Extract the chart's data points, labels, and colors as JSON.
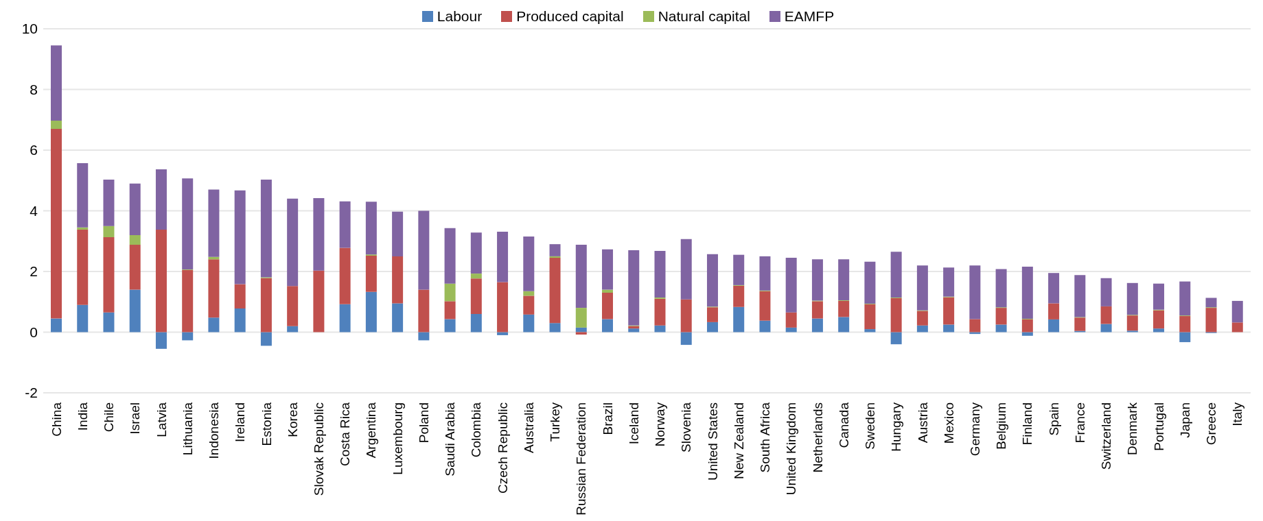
{
  "chart_data": {
    "type": "bar",
    "stacked": true,
    "legend": "top",
    "grid": "y",
    "categories": [
      "China",
      "India",
      "Chile",
      "Israel",
      "Latvia",
      "Lithuania",
      "Indonesia",
      "Ireland",
      "Estonia",
      "Korea",
      "Slovak Republic",
      "Costa Rica",
      "Argentina",
      "Luxembourg",
      "Poland",
      "Saudi Arabia",
      "Colombia",
      "Czech Republic",
      "Australia",
      "Turkey",
      "Russian Federation",
      "Brazil",
      "Iceland",
      "Norway",
      "Slovenia",
      "United States",
      "New Zealand",
      "South Africa",
      "United Kingdom",
      "Netherlands",
      "Canada",
      "Sweden",
      "Hungary",
      "Austria",
      "Mexico",
      "Germany",
      "Belgium",
      "Finland",
      "Spain",
      "France",
      "Switzerland",
      "Denmark",
      "Portugal",
      "Japan",
      "Greece",
      "Italy"
    ],
    "ylim": [
      -2,
      10
    ],
    "yticks": [
      -2,
      0,
      2,
      4,
      6,
      8,
      10
    ],
    "series": [
      {
        "name": "Labour",
        "color": "#4f81bd",
        "values": [
          0.45,
          0.9,
          0.65,
          1.4,
          -0.55,
          -0.27,
          0.48,
          0.78,
          -0.45,
          0.2,
          0,
          0.92,
          1.33,
          0.95,
          -0.27,
          0.43,
          0.6,
          -0.1,
          0.58,
          0.3,
          0.15,
          0.43,
          0.12,
          0.22,
          -0.42,
          0.33,
          0.83,
          0.38,
          0.15,
          0.45,
          0.5,
          0.1,
          -0.4,
          0.22,
          0.25,
          -0.06,
          0.25,
          -0.12,
          0.42,
          0.04,
          0.27,
          0.05,
          0.12,
          -0.33,
          -0.03,
          0
        ]
      },
      {
        "name": "Produced capital",
        "color": "#c0504d",
        "values": [
          6.25,
          2.48,
          2.48,
          1.48,
          3.38,
          2.05,
          1.92,
          0.8,
          1.78,
          1.32,
          2.03,
          1.86,
          1.19,
          1.55,
          1.4,
          0.59,
          1.17,
          1.65,
          0.62,
          2.15,
          -0.08,
          0.87,
          0.08,
          0.88,
          1.08,
          0.49,
          0.7,
          0.97,
          0.5,
          0.57,
          0.53,
          0.82,
          1.12,
          0.48,
          0.9,
          0.43,
          0.55,
          0.42,
          0.53,
          0.44,
          0.58,
          0.5,
          0.6,
          0.53,
          0.8,
          0.32
        ]
      },
      {
        "name": "Natural capital",
        "color": "#9bbb59",
        "values": [
          0.27,
          0.07,
          0.37,
          0.32,
          0,
          0.02,
          0.08,
          0,
          0.03,
          0,
          0,
          null,
          0.04,
          0,
          0,
          0.58,
          0.16,
          null,
          0.15,
          0.05,
          0.65,
          0.1,
          0.02,
          0.04,
          0,
          0.02,
          0.02,
          0.02,
          0,
          0.02,
          0.02,
          0.02,
          0.02,
          0.02,
          0.02,
          0,
          0.02,
          0.02,
          null,
          0.02,
          0,
          0.02,
          0.02,
          0.02,
          0.02,
          0
        ]
      },
      {
        "name": "EAMFP",
        "color": "#8064a2",
        "values": [
          2.48,
          2.12,
          1.53,
          1.7,
          1.99,
          3.0,
          2.22,
          3.09,
          3.22,
          2.88,
          2.39,
          1.53,
          1.74,
          1.47,
          2.6,
          1.83,
          1.35,
          1.66,
          1.8,
          0.4,
          2.08,
          1.33,
          2.48,
          1.54,
          1.99,
          1.73,
          1.0,
          1.13,
          1.8,
          1.36,
          1.35,
          1.38,
          1.51,
          1.48,
          0.96,
          1.77,
          1.26,
          1.72,
          1.0,
          1.38,
          0.93,
          1.05,
          0.86,
          1.12,
          0.31,
          0.71
        ]
      }
    ]
  }
}
